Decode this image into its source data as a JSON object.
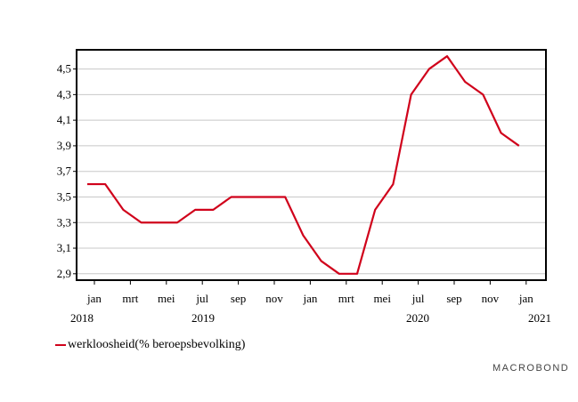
{
  "chart_data": {
    "type": "line",
    "ylim": [
      2.85,
      4.65
    ],
    "yticks": [
      "2,9",
      "3,1",
      "3,3",
      "3,5",
      "3,7",
      "3,9",
      "4,1",
      "4,3",
      "4,5"
    ],
    "yticks_values": [
      2.9,
      3.1,
      3.3,
      3.5,
      3.7,
      3.9,
      4.1,
      4.3,
      4.5
    ],
    "grid": true,
    "month_labels": [
      "jan",
      "mrt",
      "mei",
      "jul",
      "sep",
      "nov",
      "jan",
      "mrt",
      "mei",
      "jul",
      "sep",
      "nov",
      "jan"
    ],
    "year_labels": [
      "2018",
      "2019",
      "2020",
      "2021"
    ],
    "x": [
      "2018-01",
      "2018-02",
      "2018-03",
      "2018-04",
      "2018-05",
      "2018-06",
      "2018-07",
      "2018-08",
      "2018-09",
      "2018-10",
      "2018-11",
      "2018-12",
      "2019-01",
      "2019-02",
      "2019-03",
      "2019-04",
      "2019-05",
      "2019-06",
      "2019-07",
      "2019-08",
      "2019-09",
      "2019-10",
      "2019-11",
      "2019-12",
      "2020-01"
    ],
    "series": [
      {
        "name": "werkloosheid(% beroepsbevolking)",
        "color": "#d0021b",
        "values": [
          3.6,
          3.6,
          3.4,
          3.3,
          3.3,
          3.3,
          3.4,
          3.4,
          3.5,
          3.5,
          3.5,
          3.5,
          3.2,
          3.0,
          2.9,
          2.9,
          3.4,
          3.6,
          4.3,
          4.5,
          4.6,
          4.4,
          4.3,
          4.0,
          3.9
        ]
      }
    ],
    "legend_position": "bottom-left"
  },
  "brand": {
    "text": "MACROBOND"
  }
}
